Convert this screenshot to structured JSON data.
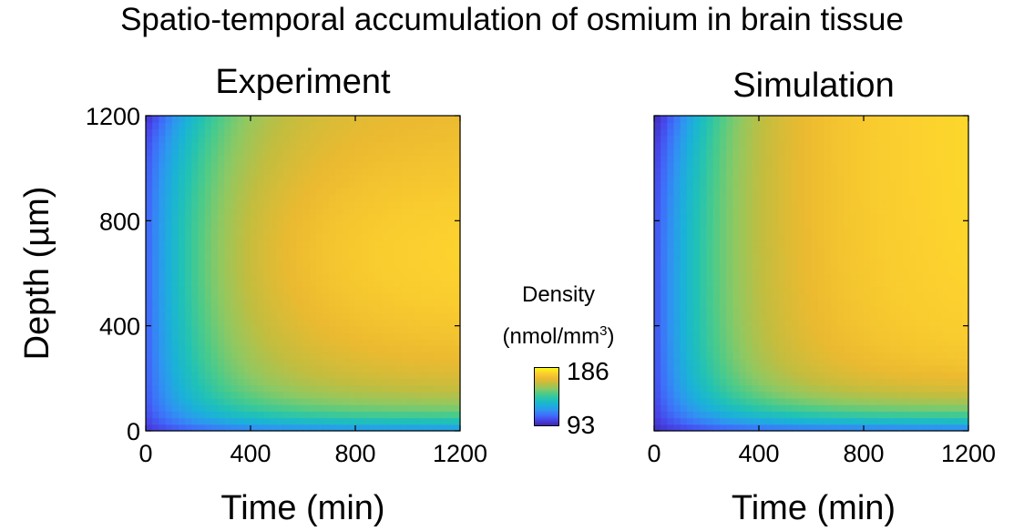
{
  "suptitle": "Spatio-temporal accumulation of osmium in brain tissue",
  "colors": {
    "colormap": [
      "#3e26a8",
      "#4744e8",
      "#3e70fa",
      "#2e96f0",
      "#1ab2d8",
      "#21c2b5",
      "#4bcb8a",
      "#8dc963",
      "#c2bd3f",
      "#ecba30",
      "#fcd02f",
      "#f9fb15"
    ],
    "axis": "#000000"
  },
  "colorbar": {
    "label_line1": "Density",
    "label_line2": "(nmol/mm",
    "label_sup": "3",
    "label_end": ")",
    "max_label": "186",
    "min_label": "93",
    "min": 93,
    "max": 186
  },
  "chart_data": [
    {
      "type": "heatmap",
      "title": "Experiment",
      "xlabel": "Time (min)",
      "ylabel": "Depth (µm)",
      "xlim": [
        0,
        1200
      ],
      "ylim": [
        0,
        1200
      ],
      "xticks": [
        "0",
        "400",
        "800",
        "1200"
      ],
      "yticks": [
        "0",
        "400",
        "800",
        "1200"
      ],
      "clim": [
        93,
        186
      ],
      "model": "experiment"
    },
    {
      "type": "heatmap",
      "title": "Simulation",
      "xlabel": "Time (min)",
      "ylabel": "",
      "xlim": [
        0,
        1200
      ],
      "ylim": [
        0,
        1200
      ],
      "xticks": [
        "0",
        "400",
        "800",
        "1200"
      ],
      "yticks": [],
      "clim": [
        93,
        186
      ],
      "model": "simulation"
    }
  ]
}
